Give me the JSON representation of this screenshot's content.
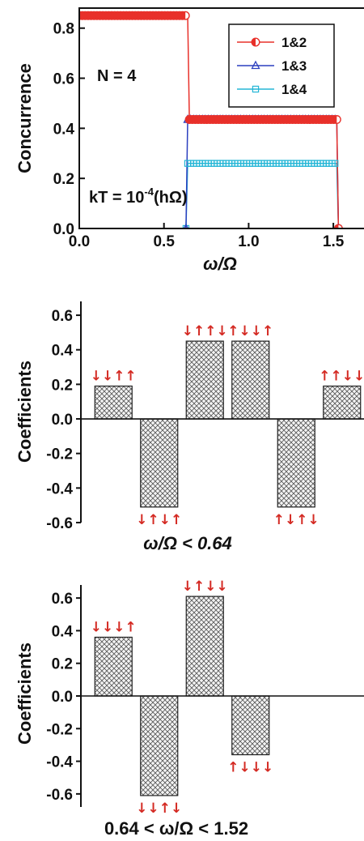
{
  "chart_data": [
    {
      "type": "line",
      "ylabel": "Concurrence",
      "xlabel": "ω/Ω",
      "xlim": [
        0.0,
        1.7
      ],
      "ylim": [
        0.0,
        0.88
      ],
      "xticks": [
        "0.0",
        "0.5",
        "1.0",
        "1.5"
      ],
      "yticks": [
        "0.0",
        "0.2",
        "0.4",
        "0.6",
        "0.8"
      ],
      "annotations": {
        "n": "N = 4",
        "kt_base": "kT = 10",
        "kt_exp": "-4",
        "kt_unit": "(hΩ)"
      },
      "legend_position": "top-right",
      "series": [
        {
          "name": "1&2",
          "color": "#e8302a",
          "marker": "half-circle",
          "x": [
            0.0,
            0.64,
            0.65,
            1.52,
            1.53
          ],
          "y": [
            0.85,
            0.85,
            0.435,
            0.435,
            0.0
          ]
        },
        {
          "name": "1&3",
          "color": "#2b3fbf",
          "marker": "triangle",
          "x": [
            0.0,
            0.63,
            0.64,
            1.52,
            1.53
          ],
          "y": [
            0.0,
            0.0,
            0.435,
            0.435,
            0.0
          ]
        },
        {
          "name": "1&4",
          "color": "#25b6d6",
          "marker": "square",
          "x": [
            0.0,
            0.63,
            0.64,
            1.52,
            1.53
          ],
          "y": [
            0.0,
            0.0,
            0.26,
            0.26,
            0.0
          ]
        }
      ]
    },
    {
      "type": "bar",
      "ylabel": "Coefficients",
      "xlabel": "ω/Ω < 0.64",
      "ylim": [
        -0.6,
        0.68
      ],
      "yticks": [
        "0.6",
        "0.4",
        "0.2",
        "0.0",
        "-0.2",
        "-0.4",
        "-0.6"
      ],
      "categories": [
        "↓↓↑↑",
        "↓↑↓↑",
        "↓↑↑↓",
        "↑↓↓↑",
        "↑↓↑↓",
        "↑↑↓↓"
      ],
      "values": [
        0.19,
        -0.51,
        0.45,
        0.45,
        -0.51,
        0.19
      ]
    },
    {
      "type": "bar",
      "ylabel": "Coefficients",
      "xlabel": "0.64 < ω/Ω < 1.52",
      "ylim": [
        -0.68,
        0.68
      ],
      "yticks": [
        "0.6",
        "0.4",
        "0.2",
        "0.0",
        "-0.2",
        "-0.4",
        "-0.6"
      ],
      "categories": [
        "↓↓↓↑",
        "↓↓↑↓",
        "↓↑↓↓",
        "↑↓↓↓"
      ],
      "values": [
        0.36,
        -0.61,
        0.61,
        -0.36
      ]
    }
  ]
}
